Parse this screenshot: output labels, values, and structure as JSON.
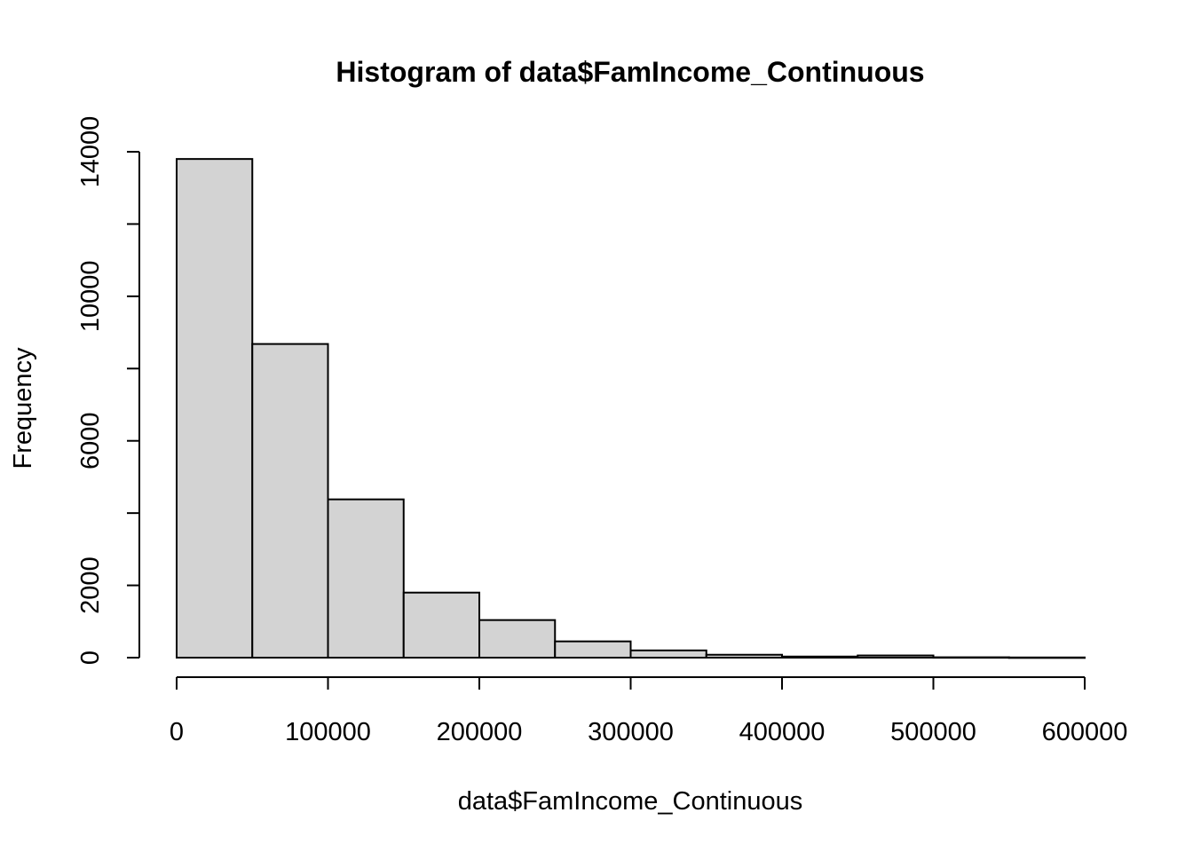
{
  "chart_data": {
    "type": "bar",
    "subtype": "histogram",
    "title": "Histogram of data$FamIncome_Continuous",
    "xlabel": "data$FamIncome_Continuous",
    "ylabel": "Frequency",
    "bin_edges": [
      0,
      50000,
      100000,
      150000,
      200000,
      250000,
      300000,
      350000,
      400000,
      450000,
      500000,
      550000,
      600000
    ],
    "values": [
      13800,
      8680,
      4380,
      1800,
      1040,
      450,
      200,
      80,
      30,
      60,
      10,
      5
    ],
    "xlim": [
      0,
      600000
    ],
    "ylim": [
      0,
      14000
    ],
    "x_ticks": [
      0,
      100000,
      200000,
      300000,
      400000,
      500000,
      600000
    ],
    "x_tick_labels": [
      "0",
      "100000",
      "200000",
      "300000",
      "400000",
      "500000",
      "600000"
    ],
    "y_ticks": [
      0,
      2000,
      4000,
      6000,
      8000,
      10000,
      12000,
      14000
    ],
    "y_tick_labels": [
      "0",
      "2000",
      "",
      "6000",
      "",
      "10000",
      "",
      "14000"
    ],
    "bar_fill": "#d3d3d3",
    "grid": false,
    "legend": "none"
  }
}
